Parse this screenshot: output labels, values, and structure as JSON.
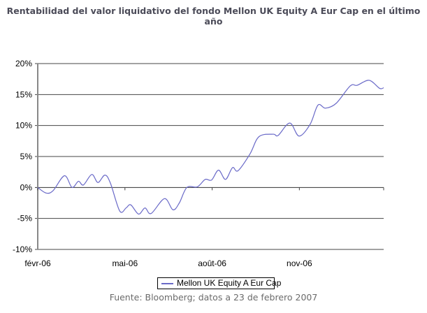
{
  "chart_data": {
    "type": "line",
    "title": "Rentabilidad del valor liquidativo del fondo Mellon UK Equity A Eur Cap en el último año",
    "xlabel": "",
    "ylabel": "",
    "x_unit": "months since févr-06",
    "xlim": [
      0,
      11.9
    ],
    "ylim": [
      -10,
      20
    ],
    "y_ticks": [
      -10,
      -5,
      0,
      5,
      10,
      15,
      20
    ],
    "y_tick_labels": [
      "-10%",
      "-5%",
      "0%",
      "5%",
      "10%",
      "15%",
      "20%"
    ],
    "x_ticks": [
      0,
      3,
      6,
      9,
      12
    ],
    "x_tick_labels": [
      "févr-06",
      "mai-06",
      "août-06",
      "nov-06"
    ],
    "grid": true,
    "legend_position": "bottom",
    "series": [
      {
        "name": "Mellon UK Equity A Eur Cap",
        "color": "#6a6ac8",
        "x": [
          0,
          0.29,
          0.53,
          0.92,
          1.18,
          1.4,
          1.57,
          1.86,
          2.07,
          2.31,
          2.5,
          2.82,
          3.04,
          3.2,
          3.47,
          3.69,
          3.9,
          4.36,
          4.65,
          4.87,
          5.13,
          5.49,
          5.76,
          5.98,
          6.22,
          6.46,
          6.7,
          6.89,
          7.3,
          7.61,
          8.1,
          8.27,
          8.67,
          8.99,
          9.37,
          9.64,
          9.9,
          10.27,
          10.75,
          10.99,
          11.4,
          11.76,
          11.9
        ],
        "values": [
          0,
          -0.9,
          -0.5,
          1.9,
          0.0,
          1.0,
          0.4,
          2.1,
          0.8,
          2.0,
          0.7,
          -3.8,
          -3.3,
          -2.8,
          -4.3,
          -3.3,
          -4.2,
          -1.8,
          -3.6,
          -2.5,
          0.0,
          0.1,
          1.3,
          1.2,
          2.8,
          1.3,
          3.2,
          2.7,
          5.4,
          8.2,
          8.6,
          8.4,
          10.4,
          8.3,
          10.2,
          13.3,
          12.8,
          13.6,
          16.4,
          16.5,
          17.3,
          16.0,
          16.1
        ]
      }
    ]
  },
  "footnote": "Fuente: Bloomberg; datos a 23 de febrero 2007"
}
